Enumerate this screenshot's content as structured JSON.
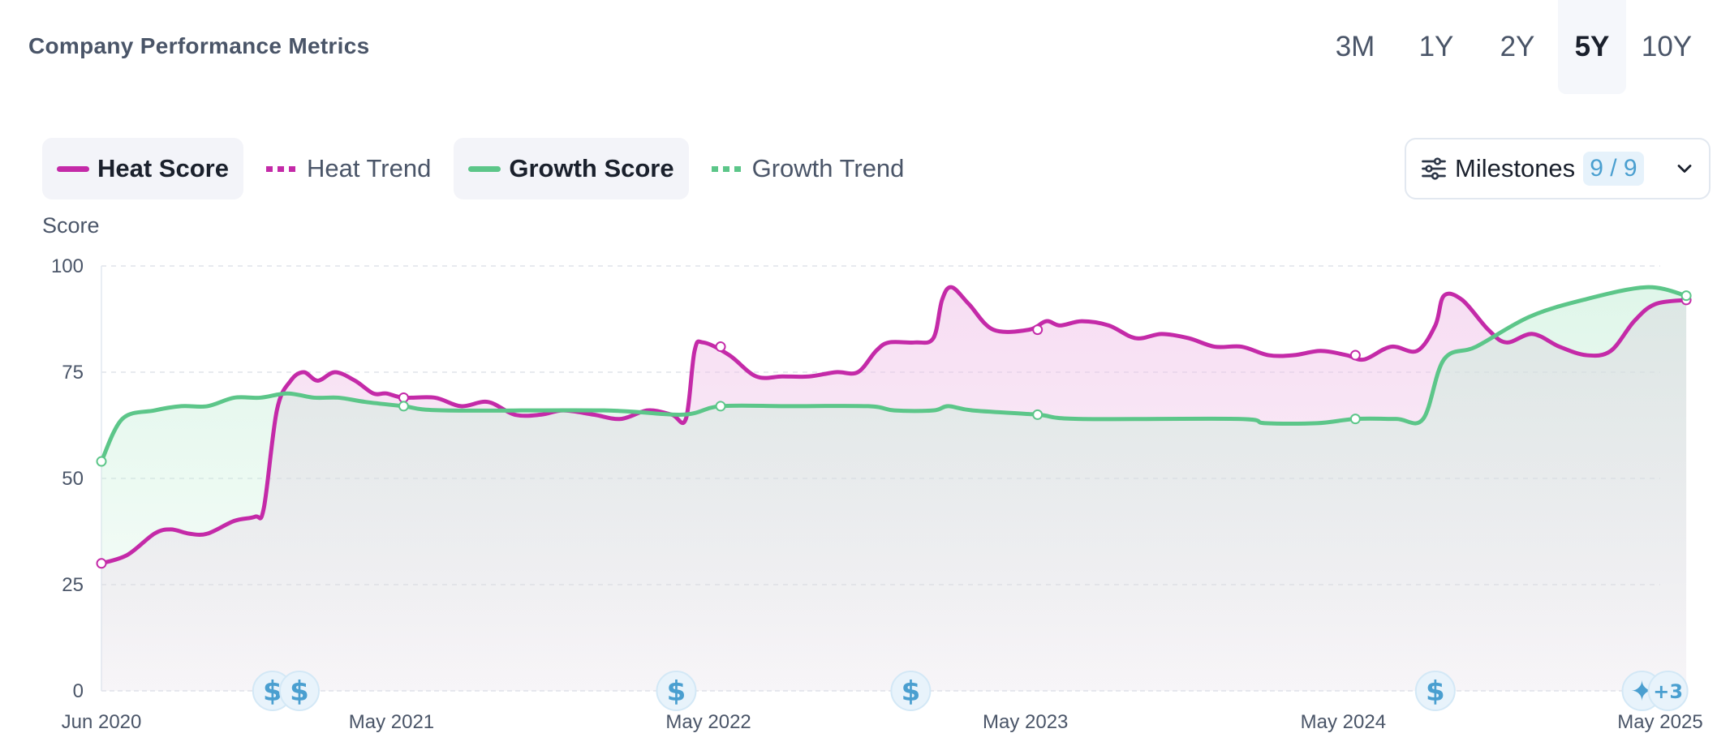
{
  "header": {
    "title": "Company Performance Metrics",
    "ranges": [
      "3M",
      "1Y",
      "2Y",
      "5Y",
      "10Y"
    ],
    "active_range": "5Y"
  },
  "legend": [
    {
      "label": "Heat Score",
      "style": "solid",
      "color": "#c42aa8",
      "active": true
    },
    {
      "label": "Heat Trend",
      "style": "dotted",
      "color": "#c42aa8",
      "active": false
    },
    {
      "label": "Growth Score",
      "style": "solid",
      "color": "#5cc689",
      "active": true
    },
    {
      "label": "Growth Trend",
      "style": "dotted",
      "color": "#5cc689",
      "active": false
    }
  ],
  "milestones_filter": {
    "label": "Milestones",
    "count": "9 / 9",
    "icon": "sliders-icon"
  },
  "chart_data": {
    "type": "line",
    "ylabel": "Score",
    "ylim": [
      0,
      100
    ],
    "yticks": [
      0,
      25,
      50,
      75,
      100
    ],
    "grid": true,
    "x_range": [
      "2020-06",
      "2025-05"
    ],
    "x_tick_labels": [
      {
        "date": "2020-06",
        "label": "Jun 2020"
      },
      {
        "date": "2021-05",
        "label": "May 2021"
      },
      {
        "date": "2022-05",
        "label": "May 2022"
      },
      {
        "date": "2023-05",
        "label": "May 2023"
      },
      {
        "date": "2024-05",
        "label": "May 2024"
      },
      {
        "date": "2025-05",
        "label": "May 2025"
      }
    ],
    "series": [
      {
        "name": "Heat Score",
        "color": "#c42aa8",
        "points": [
          [
            "2020-06-01",
            30
          ],
          [
            "2020-07-01",
            32
          ],
          [
            "2020-08-01",
            37
          ],
          [
            "2020-08-20",
            38
          ],
          [
            "2020-09-10",
            37
          ],
          [
            "2020-10-01",
            37
          ],
          [
            "2020-11-01",
            40
          ],
          [
            "2020-11-25",
            41
          ],
          [
            "2020-12-05",
            43
          ],
          [
            "2020-12-20",
            66
          ],
          [
            "2021-01-05",
            73
          ],
          [
            "2021-01-20",
            75
          ],
          [
            "2021-02-05",
            73
          ],
          [
            "2021-02-25",
            75
          ],
          [
            "2021-03-20",
            73
          ],
          [
            "2021-04-10",
            70
          ],
          [
            "2021-04-25",
            70
          ],
          [
            "2021-05-15",
            69
          ],
          [
            "2021-06-20",
            69
          ],
          [
            "2021-07-20",
            67
          ],
          [
            "2021-08-20",
            68
          ],
          [
            "2021-09-20",
            65
          ],
          [
            "2021-10-20",
            65
          ],
          [
            "2021-11-15",
            66
          ],
          [
            "2021-12-20",
            65
          ],
          [
            "2022-01-20",
            64
          ],
          [
            "2022-02-20",
            66
          ],
          [
            "2022-03-20",
            65
          ],
          [
            "2022-04-05",
            64
          ],
          [
            "2022-04-15",
            80
          ],
          [
            "2022-04-25",
            82
          ],
          [
            "2022-05-25",
            79
          ],
          [
            "2022-06-25",
            74
          ],
          [
            "2022-07-25",
            74
          ],
          [
            "2022-08-25",
            74
          ],
          [
            "2022-09-25",
            75
          ],
          [
            "2022-10-20",
            75
          ],
          [
            "2022-11-10",
            80
          ],
          [
            "2022-11-25",
            82
          ],
          [
            "2022-12-25",
            82
          ],
          [
            "2023-01-15",
            83
          ],
          [
            "2023-01-25",
            92
          ],
          [
            "2023-02-05",
            95
          ],
          [
            "2023-02-25",
            91
          ],
          [
            "2023-03-25",
            85
          ],
          [
            "2023-05-05",
            85
          ],
          [
            "2023-05-25",
            87
          ],
          [
            "2023-06-10",
            86
          ],
          [
            "2023-07-05",
            87
          ],
          [
            "2023-08-05",
            86
          ],
          [
            "2023-09-05",
            83
          ],
          [
            "2023-10-05",
            84
          ],
          [
            "2023-11-05",
            83
          ],
          [
            "2023-12-05",
            81
          ],
          [
            "2024-01-05",
            81
          ],
          [
            "2024-02-05",
            79
          ],
          [
            "2024-03-05",
            79
          ],
          [
            "2024-04-05",
            80
          ],
          [
            "2024-05-05",
            79
          ],
          [
            "2024-05-25",
            78
          ],
          [
            "2024-06-25",
            81
          ],
          [
            "2024-07-25",
            80
          ],
          [
            "2024-08-15",
            86
          ],
          [
            "2024-08-25",
            93
          ],
          [
            "2024-09-15",
            92
          ],
          [
            "2024-10-15",
            85
          ],
          [
            "2024-11-05",
            82
          ],
          [
            "2024-12-05",
            84
          ],
          [
            "2025-01-05",
            81
          ],
          [
            "2025-02-05",
            79
          ],
          [
            "2025-03-05",
            80
          ],
          [
            "2025-04-01",
            87
          ],
          [
            "2025-04-25",
            91
          ],
          [
            "2025-05-31",
            92
          ]
        ],
        "markers": [
          [
            "2020-06-01",
            30
          ],
          [
            "2021-05-15",
            69
          ],
          [
            "2022-05-15",
            81
          ],
          [
            "2023-05-15",
            85
          ],
          [
            "2024-05-15",
            79
          ],
          [
            "2025-05-31",
            92
          ]
        ]
      },
      {
        "name": "Growth Score",
        "color": "#5cc689",
        "points": [
          [
            "2020-06-01",
            54
          ],
          [
            "2020-06-25",
            64
          ],
          [
            "2020-08-01",
            66
          ],
          [
            "2020-09-01",
            67
          ],
          [
            "2020-10-01",
            67
          ],
          [
            "2020-11-01",
            69
          ],
          [
            "2020-12-01",
            69
          ],
          [
            "2021-01-01",
            70
          ],
          [
            "2021-02-01",
            69
          ],
          [
            "2021-03-01",
            69
          ],
          [
            "2021-04-01",
            68
          ],
          [
            "2021-05-15",
            67
          ],
          [
            "2021-07-01",
            66
          ],
          [
            "2022-01-01",
            66
          ],
          [
            "2022-04-01",
            65
          ],
          [
            "2022-05-15",
            67
          ],
          [
            "2022-08-01",
            67
          ],
          [
            "2022-11-01",
            67
          ],
          [
            "2022-12-01",
            66
          ],
          [
            "2023-01-15",
            66
          ],
          [
            "2023-02-01",
            67
          ],
          [
            "2023-03-01",
            66
          ],
          [
            "2023-05-15",
            65
          ],
          [
            "2023-07-01",
            64
          ],
          [
            "2024-01-01",
            64
          ],
          [
            "2024-02-01",
            63
          ],
          [
            "2024-04-01",
            63
          ],
          [
            "2024-05-15",
            64
          ],
          [
            "2024-07-01",
            64
          ],
          [
            "2024-08-01",
            64
          ],
          [
            "2024-08-25",
            78
          ],
          [
            "2024-10-01",
            81
          ],
          [
            "2024-12-01",
            88
          ],
          [
            "2025-02-01",
            92
          ],
          [
            "2025-04-15",
            95
          ],
          [
            "2025-05-31",
            93
          ]
        ],
        "markers": [
          [
            "2020-06-01",
            54
          ],
          [
            "2021-05-15",
            67
          ],
          [
            "2022-05-15",
            67
          ],
          [
            "2023-05-15",
            65
          ],
          [
            "2024-05-15",
            64
          ],
          [
            "2025-05-31",
            93
          ]
        ]
      }
    ],
    "milestones": [
      {
        "date": "2020-12-15",
        "icon": "dollar-icon",
        "glyph": "$"
      },
      {
        "date": "2021-01-15",
        "icon": "dollar-icon",
        "glyph": "$"
      },
      {
        "date": "2022-03-25",
        "icon": "dollar-icon",
        "glyph": "$"
      },
      {
        "date": "2022-12-20",
        "icon": "dollar-icon",
        "glyph": "$"
      },
      {
        "date": "2024-08-15",
        "icon": "dollar-icon",
        "glyph": "$"
      },
      {
        "date": "2025-04-10",
        "icon": "sparkle-icon",
        "glyph": "✦"
      },
      {
        "date": "2025-05-10",
        "icon": "more-badge",
        "glyph": "+3"
      }
    ]
  }
}
